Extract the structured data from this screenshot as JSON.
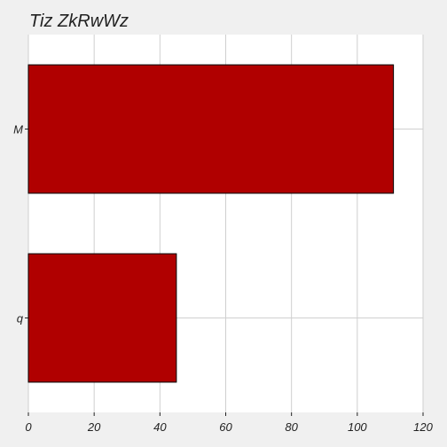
{
  "chart_data": {
    "type": "bar",
    "orientation": "horizontal",
    "title": "Tiz ZkRwWz",
    "xlabel": "",
    "ylabel": "",
    "categories": [
      "M",
      "q"
    ],
    "values": [
      111,
      45
    ],
    "xlim": [
      0,
      120
    ],
    "xticks": [
      0,
      20,
      40,
      60,
      80,
      100,
      120
    ],
    "grid": true,
    "legend": "none",
    "bar_color": "#b00000",
    "background_color": "#f0f0f0",
    "plot_background_color": "#ffffff"
  }
}
